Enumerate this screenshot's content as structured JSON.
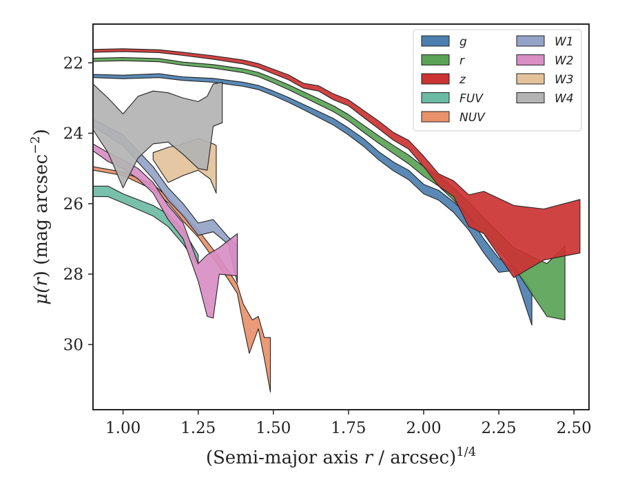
{
  "chart_data": {
    "type": "area",
    "xlabel_main": "(Semi-major axis ",
    "xlabel_var": "r",
    "xlabel_unit": " / arcsec)",
    "xlabel_exp": "1/4",
    "ylabel_mu": "μ(",
    "ylabel_var": "r",
    "ylabel_unit": ") (mag arcsec",
    "ylabel_exp": "−2",
    "ylabel_close": ")",
    "xlim": [
      0.9,
      2.55
    ],
    "ylim": [
      31.85,
      20.9
    ],
    "y_inverted": true,
    "xticks": [
      "1.00",
      "1.25",
      "1.50",
      "1.75",
      "2.00",
      "2.25",
      "2.50"
    ],
    "xtick_values": [
      1.0,
      1.25,
      1.5,
      1.75,
      2.0,
      2.25,
      2.5
    ],
    "yticks": [
      "22",
      "24",
      "26",
      "28",
      "30"
    ],
    "ytick_values": [
      22,
      24,
      26,
      28,
      30
    ],
    "grid": false,
    "legend_position": "top-right",
    "legend_columns": 2,
    "series": [
      {
        "name": "g",
        "color": "#4c7fb0",
        "upper": [
          [
            0.9,
            22.33
          ],
          [
            1.0,
            22.35
          ],
          [
            1.12,
            22.31
          ],
          [
            1.2,
            22.4
          ],
          [
            1.3,
            22.44
          ],
          [
            1.4,
            22.55
          ],
          [
            1.45,
            22.64
          ],
          [
            1.5,
            22.8
          ],
          [
            1.55,
            22.98
          ],
          [
            1.6,
            23.18
          ],
          [
            1.65,
            23.38
          ],
          [
            1.7,
            23.58
          ],
          [
            1.75,
            23.85
          ],
          [
            1.8,
            24.15
          ],
          [
            1.85,
            24.52
          ],
          [
            1.9,
            24.82
          ],
          [
            1.95,
            25.05
          ],
          [
            2.0,
            25.45
          ],
          [
            2.05,
            25.62
          ],
          [
            2.1,
            25.95
          ],
          [
            2.15,
            26.35
          ],
          [
            2.2,
            27.0
          ],
          [
            2.25,
            27.55
          ],
          [
            2.3,
            27.8
          ],
          [
            2.36,
            28.45
          ]
        ],
        "lower": [
          [
            0.9,
            22.42
          ],
          [
            1.0,
            22.45
          ],
          [
            1.12,
            22.42
          ],
          [
            1.2,
            22.5
          ],
          [
            1.3,
            22.55
          ],
          [
            1.4,
            22.67
          ],
          [
            1.45,
            22.76
          ],
          [
            1.5,
            22.93
          ],
          [
            1.55,
            23.12
          ],
          [
            1.6,
            23.33
          ],
          [
            1.65,
            23.55
          ],
          [
            1.7,
            23.77
          ],
          [
            1.75,
            24.05
          ],
          [
            1.8,
            24.37
          ],
          [
            1.85,
            24.75
          ],
          [
            1.9,
            25.07
          ],
          [
            1.95,
            25.32
          ],
          [
            2.0,
            25.72
          ],
          [
            2.05,
            25.9
          ],
          [
            2.1,
            26.25
          ],
          [
            2.15,
            26.75
          ],
          [
            2.2,
            27.4
          ],
          [
            2.25,
            27.95
          ],
          [
            2.3,
            27.9
          ],
          [
            2.36,
            29.45
          ]
        ]
      },
      {
        "name": "r",
        "color": "#5aa356",
        "upper": [
          [
            0.9,
            21.87
          ],
          [
            1.0,
            21.85
          ],
          [
            1.12,
            21.88
          ],
          [
            1.2,
            21.98
          ],
          [
            1.3,
            22.05
          ],
          [
            1.4,
            22.17
          ],
          [
            1.45,
            22.27
          ],
          [
            1.5,
            22.44
          ],
          [
            1.55,
            22.62
          ],
          [
            1.6,
            22.82
          ],
          [
            1.65,
            23.02
          ],
          [
            1.7,
            23.22
          ],
          [
            1.75,
            23.47
          ],
          [
            1.8,
            23.77
          ],
          [
            1.85,
            24.07
          ],
          [
            1.9,
            24.35
          ],
          [
            1.95,
            24.62
          ],
          [
            2.0,
            24.95
          ],
          [
            2.05,
            25.2
          ],
          [
            2.1,
            25.55
          ],
          [
            2.15,
            25.95
          ],
          [
            2.2,
            26.4
          ],
          [
            2.3,
            27.25
          ],
          [
            2.41,
            27.7
          ],
          [
            2.47,
            27.2
          ]
        ],
        "lower": [
          [
            0.9,
            21.96
          ],
          [
            1.0,
            21.94
          ],
          [
            1.12,
            21.97
          ],
          [
            1.2,
            22.07
          ],
          [
            1.3,
            22.15
          ],
          [
            1.4,
            22.28
          ],
          [
            1.45,
            22.39
          ],
          [
            1.5,
            22.57
          ],
          [
            1.55,
            22.76
          ],
          [
            1.6,
            22.97
          ],
          [
            1.65,
            23.18
          ],
          [
            1.7,
            23.39
          ],
          [
            1.75,
            23.65
          ],
          [
            1.8,
            23.97
          ],
          [
            1.85,
            24.28
          ],
          [
            1.9,
            24.58
          ],
          [
            1.95,
            24.87
          ],
          [
            2.0,
            25.22
          ],
          [
            2.05,
            25.5
          ],
          [
            2.1,
            25.9
          ],
          [
            2.15,
            26.35
          ],
          [
            2.2,
            26.85
          ],
          [
            2.3,
            27.8
          ],
          [
            2.41,
            29.2
          ],
          [
            2.47,
            29.3
          ]
        ]
      },
      {
        "name": "z",
        "color": "#cc3333",
        "upper": [
          [
            0.9,
            21.62
          ],
          [
            1.0,
            21.6
          ],
          [
            1.12,
            21.63
          ],
          [
            1.2,
            21.7
          ],
          [
            1.3,
            21.8
          ],
          [
            1.4,
            21.92
          ],
          [
            1.45,
            22.02
          ],
          [
            1.5,
            22.18
          ],
          [
            1.55,
            22.34
          ],
          [
            1.6,
            22.58
          ],
          [
            1.65,
            22.65
          ],
          [
            1.7,
            22.88
          ],
          [
            1.75,
            23.05
          ],
          [
            1.8,
            23.35
          ],
          [
            1.85,
            23.65
          ],
          [
            1.9,
            23.98
          ],
          [
            1.95,
            24.2
          ],
          [
            2.0,
            24.65
          ],
          [
            2.05,
            25.15
          ],
          [
            2.1,
            25.35
          ],
          [
            2.15,
            25.75
          ],
          [
            2.2,
            25.65
          ],
          [
            2.3,
            26.05
          ],
          [
            2.4,
            26.15
          ],
          [
            2.52,
            25.88
          ]
        ],
        "lower": [
          [
            0.9,
            21.7
          ],
          [
            1.0,
            21.68
          ],
          [
            1.12,
            21.71
          ],
          [
            1.2,
            21.79
          ],
          [
            1.3,
            21.9
          ],
          [
            1.4,
            22.03
          ],
          [
            1.45,
            22.14
          ],
          [
            1.5,
            22.31
          ],
          [
            1.55,
            22.48
          ],
          [
            1.6,
            22.72
          ],
          [
            1.65,
            22.8
          ],
          [
            1.7,
            23.05
          ],
          [
            1.75,
            23.22
          ],
          [
            1.8,
            23.55
          ],
          [
            1.85,
            23.87
          ],
          [
            1.9,
            24.2
          ],
          [
            1.95,
            24.45
          ],
          [
            2.0,
            24.95
          ],
          [
            2.05,
            25.5
          ],
          [
            2.1,
            25.8
          ],
          [
            2.15,
            26.65
          ],
          [
            2.2,
            26.85
          ],
          [
            2.3,
            28.1
          ],
          [
            2.4,
            27.6
          ],
          [
            2.52,
            27.4
          ]
        ]
      },
      {
        "name": "FUV",
        "color": "#6cbba3",
        "upper": [
          [
            0.9,
            25.5
          ],
          [
            0.95,
            25.5
          ],
          [
            1.0,
            25.72
          ],
          [
            1.1,
            26.05
          ],
          [
            1.15,
            26.3
          ],
          [
            1.2,
            26.75
          ],
          [
            1.25,
            27.45
          ]
        ],
        "lower": [
          [
            0.9,
            25.8
          ],
          [
            0.95,
            25.8
          ],
          [
            1.0,
            25.98
          ],
          [
            1.1,
            26.35
          ],
          [
            1.15,
            26.65
          ],
          [
            1.2,
            27.15
          ],
          [
            1.25,
            27.75
          ]
        ]
      },
      {
        "name": "NUV",
        "color": "#e8916a",
        "upper": [
          [
            0.9,
            24.95
          ],
          [
            1.0,
            25.1
          ],
          [
            1.1,
            25.45
          ],
          [
            1.15,
            25.82
          ],
          [
            1.2,
            26.3
          ],
          [
            1.25,
            26.75
          ],
          [
            1.3,
            27.3
          ],
          [
            1.35,
            27.9
          ],
          [
            1.38,
            28.3
          ],
          [
            1.4,
            28.85
          ],
          [
            1.43,
            29.3
          ],
          [
            1.45,
            29.2
          ],
          [
            1.47,
            29.8
          ],
          [
            1.49,
            29.8
          ]
        ],
        "lower": [
          [
            0.9,
            25.05
          ],
          [
            1.0,
            25.2
          ],
          [
            1.1,
            25.6
          ],
          [
            1.15,
            25.98
          ],
          [
            1.2,
            26.5
          ],
          [
            1.25,
            26.95
          ],
          [
            1.3,
            27.55
          ],
          [
            1.35,
            28.15
          ],
          [
            1.38,
            28.55
          ],
          [
            1.4,
            29.45
          ],
          [
            1.42,
            30.25
          ],
          [
            1.45,
            29.55
          ],
          [
            1.47,
            30.4
          ],
          [
            1.49,
            31.35
          ]
        ]
      },
      {
        "name": "W1",
        "color": "#94a3c7",
        "upper": [
          [
            0.9,
            23.6
          ],
          [
            1.0,
            24.05
          ],
          [
            1.1,
            24.95
          ],
          [
            1.15,
            25.55
          ],
          [
            1.2,
            26.0
          ],
          [
            1.25,
            26.55
          ],
          [
            1.3,
            26.45
          ],
          [
            1.35,
            26.95
          ],
          [
            1.38,
            27.2
          ]
        ],
        "lower": [
          [
            0.9,
            23.8
          ],
          [
            1.0,
            24.35
          ],
          [
            1.1,
            25.3
          ],
          [
            1.15,
            25.9
          ],
          [
            1.2,
            26.35
          ],
          [
            1.25,
            26.9
          ],
          [
            1.3,
            26.8
          ],
          [
            1.35,
            27.15
          ],
          [
            1.38,
            28.25
          ]
        ]
      },
      {
        "name": "W2",
        "color": "#d98ec4",
        "upper": [
          [
            0.9,
            24.3
          ],
          [
            0.95,
            24.55
          ],
          [
            1.0,
            24.75
          ],
          [
            1.05,
            25.0
          ],
          [
            1.1,
            25.4
          ],
          [
            1.15,
            26.05
          ],
          [
            1.2,
            26.55
          ],
          [
            1.25,
            27.7
          ],
          [
            1.28,
            27.45
          ],
          [
            1.32,
            27.25
          ],
          [
            1.38,
            26.85
          ]
        ],
        "lower": [
          [
            0.9,
            24.5
          ],
          [
            0.95,
            24.8
          ],
          [
            1.0,
            25.0
          ],
          [
            1.05,
            25.3
          ],
          [
            1.1,
            25.7
          ],
          [
            1.15,
            26.45
          ],
          [
            1.2,
            27.0
          ],
          [
            1.25,
            28.2
          ],
          [
            1.28,
            29.2
          ],
          [
            1.3,
            29.25
          ],
          [
            1.32,
            28.0
          ],
          [
            1.38,
            28.05
          ]
        ]
      },
      {
        "name": "W3",
        "color": "#e3c29b",
        "upper": [
          [
            1.1,
            24.55
          ],
          [
            1.15,
            24.4
          ],
          [
            1.2,
            24.3
          ],
          [
            1.25,
            24.15
          ],
          [
            1.3,
            24.3
          ],
          [
            1.31,
            24.35
          ]
        ],
        "lower": [
          [
            1.1,
            24.75
          ],
          [
            1.15,
            25.4
          ],
          [
            1.2,
            25.2
          ],
          [
            1.25,
            25.05
          ],
          [
            1.29,
            25.3
          ],
          [
            1.31,
            25.7
          ]
        ]
      },
      {
        "name": "W4",
        "color": "#b3b3b3",
        "upper": [
          [
            0.9,
            22.6
          ],
          [
            0.95,
            23.0
          ],
          [
            1.0,
            23.45
          ],
          [
            1.05,
            22.95
          ],
          [
            1.1,
            22.8
          ],
          [
            1.15,
            22.85
          ],
          [
            1.2,
            23.0
          ],
          [
            1.25,
            23.1
          ],
          [
            1.28,
            22.95
          ],
          [
            1.3,
            22.6
          ],
          [
            1.33,
            22.55
          ]
        ],
        "lower": [
          [
            0.9,
            23.9
          ],
          [
            0.95,
            24.55
          ],
          [
            1.0,
            25.55
          ],
          [
            1.05,
            24.7
          ],
          [
            1.1,
            24.3
          ],
          [
            1.15,
            24.25
          ],
          [
            1.2,
            24.6
          ],
          [
            1.25,
            25.0
          ],
          [
            1.28,
            25.05
          ],
          [
            1.3,
            23.8
          ],
          [
            1.33,
            23.7
          ]
        ]
      }
    ]
  }
}
